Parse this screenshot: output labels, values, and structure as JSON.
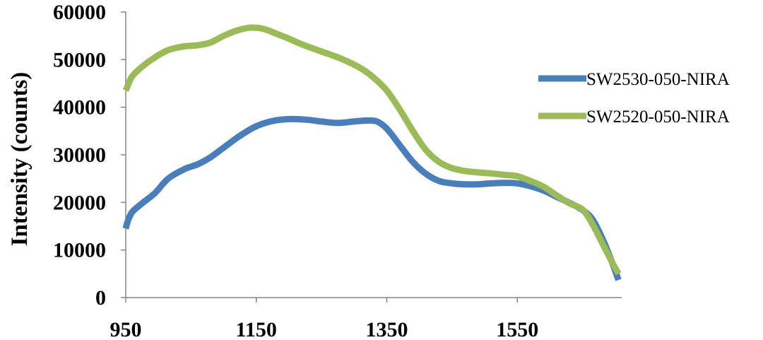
{
  "chart_data": {
    "type": "line",
    "title": "",
    "xlabel": "",
    "ylabel": "Intensity (counts)",
    "xlim": [
      950,
      1710
    ],
    "ylim": [
      0,
      60000
    ],
    "xticks": [
      950,
      1150,
      1350,
      1550
    ],
    "yticks": [
      0,
      10000,
      20000,
      30000,
      40000,
      50000,
      60000
    ],
    "grid": false,
    "legend_position": "right",
    "series": [
      {
        "name": "SW2530-050-NIRA",
        "color": "#4a7ebb",
        "x": [
          950,
          953,
          960,
          975,
          995,
          1015,
          1040,
          1060,
          1080,
          1100,
          1125,
          1150,
          1175,
          1200,
          1225,
          1250,
          1275,
          1300,
          1320,
          1335,
          1350,
          1370,
          1390,
          1410,
          1430,
          1450,
          1470,
          1490,
          1510,
          1530,
          1550,
          1570,
          1590,
          1610,
          1630,
          1650,
          1665,
          1680,
          1695,
          1705
        ],
        "values": [
          14500,
          16000,
          18000,
          19800,
          22000,
          25000,
          27000,
          28000,
          29500,
          31500,
          34000,
          36000,
          37100,
          37500,
          37400,
          37000,
          36700,
          37000,
          37200,
          37000,
          35500,
          32000,
          28500,
          26000,
          24500,
          24000,
          23800,
          23800,
          24000,
          24100,
          24000,
          23400,
          22500,
          21200,
          19900,
          18400,
          16500,
          12500,
          7500,
          3700
        ]
      },
      {
        "name": "SW2520-050-NIRA",
        "color": "#9bbb59",
        "x": [
          950,
          953,
          960,
          975,
          995,
          1015,
          1040,
          1060,
          1080,
          1100,
          1120,
          1140,
          1160,
          1180,
          1200,
          1220,
          1250,
          1280,
          1310,
          1330,
          1350,
          1370,
          1390,
          1410,
          1430,
          1450,
          1470,
          1490,
          1510,
          1530,
          1550,
          1570,
          1590,
          1610,
          1630,
          1650,
          1665,
          1680,
          1695,
          1705
        ],
        "values": [
          43500,
          44500,
          46500,
          48500,
          50500,
          52000,
          52800,
          53000,
          53600,
          55000,
          56100,
          56700,
          56500,
          55500,
          54400,
          53200,
          51700,
          50200,
          48200,
          46200,
          43500,
          39500,
          35000,
          31000,
          28500,
          27200,
          26600,
          26300,
          26100,
          25800,
          25500,
          24500,
          23300,
          21500,
          19800,
          18500,
          15500,
          11500,
          7500,
          5000
        ]
      }
    ]
  }
}
